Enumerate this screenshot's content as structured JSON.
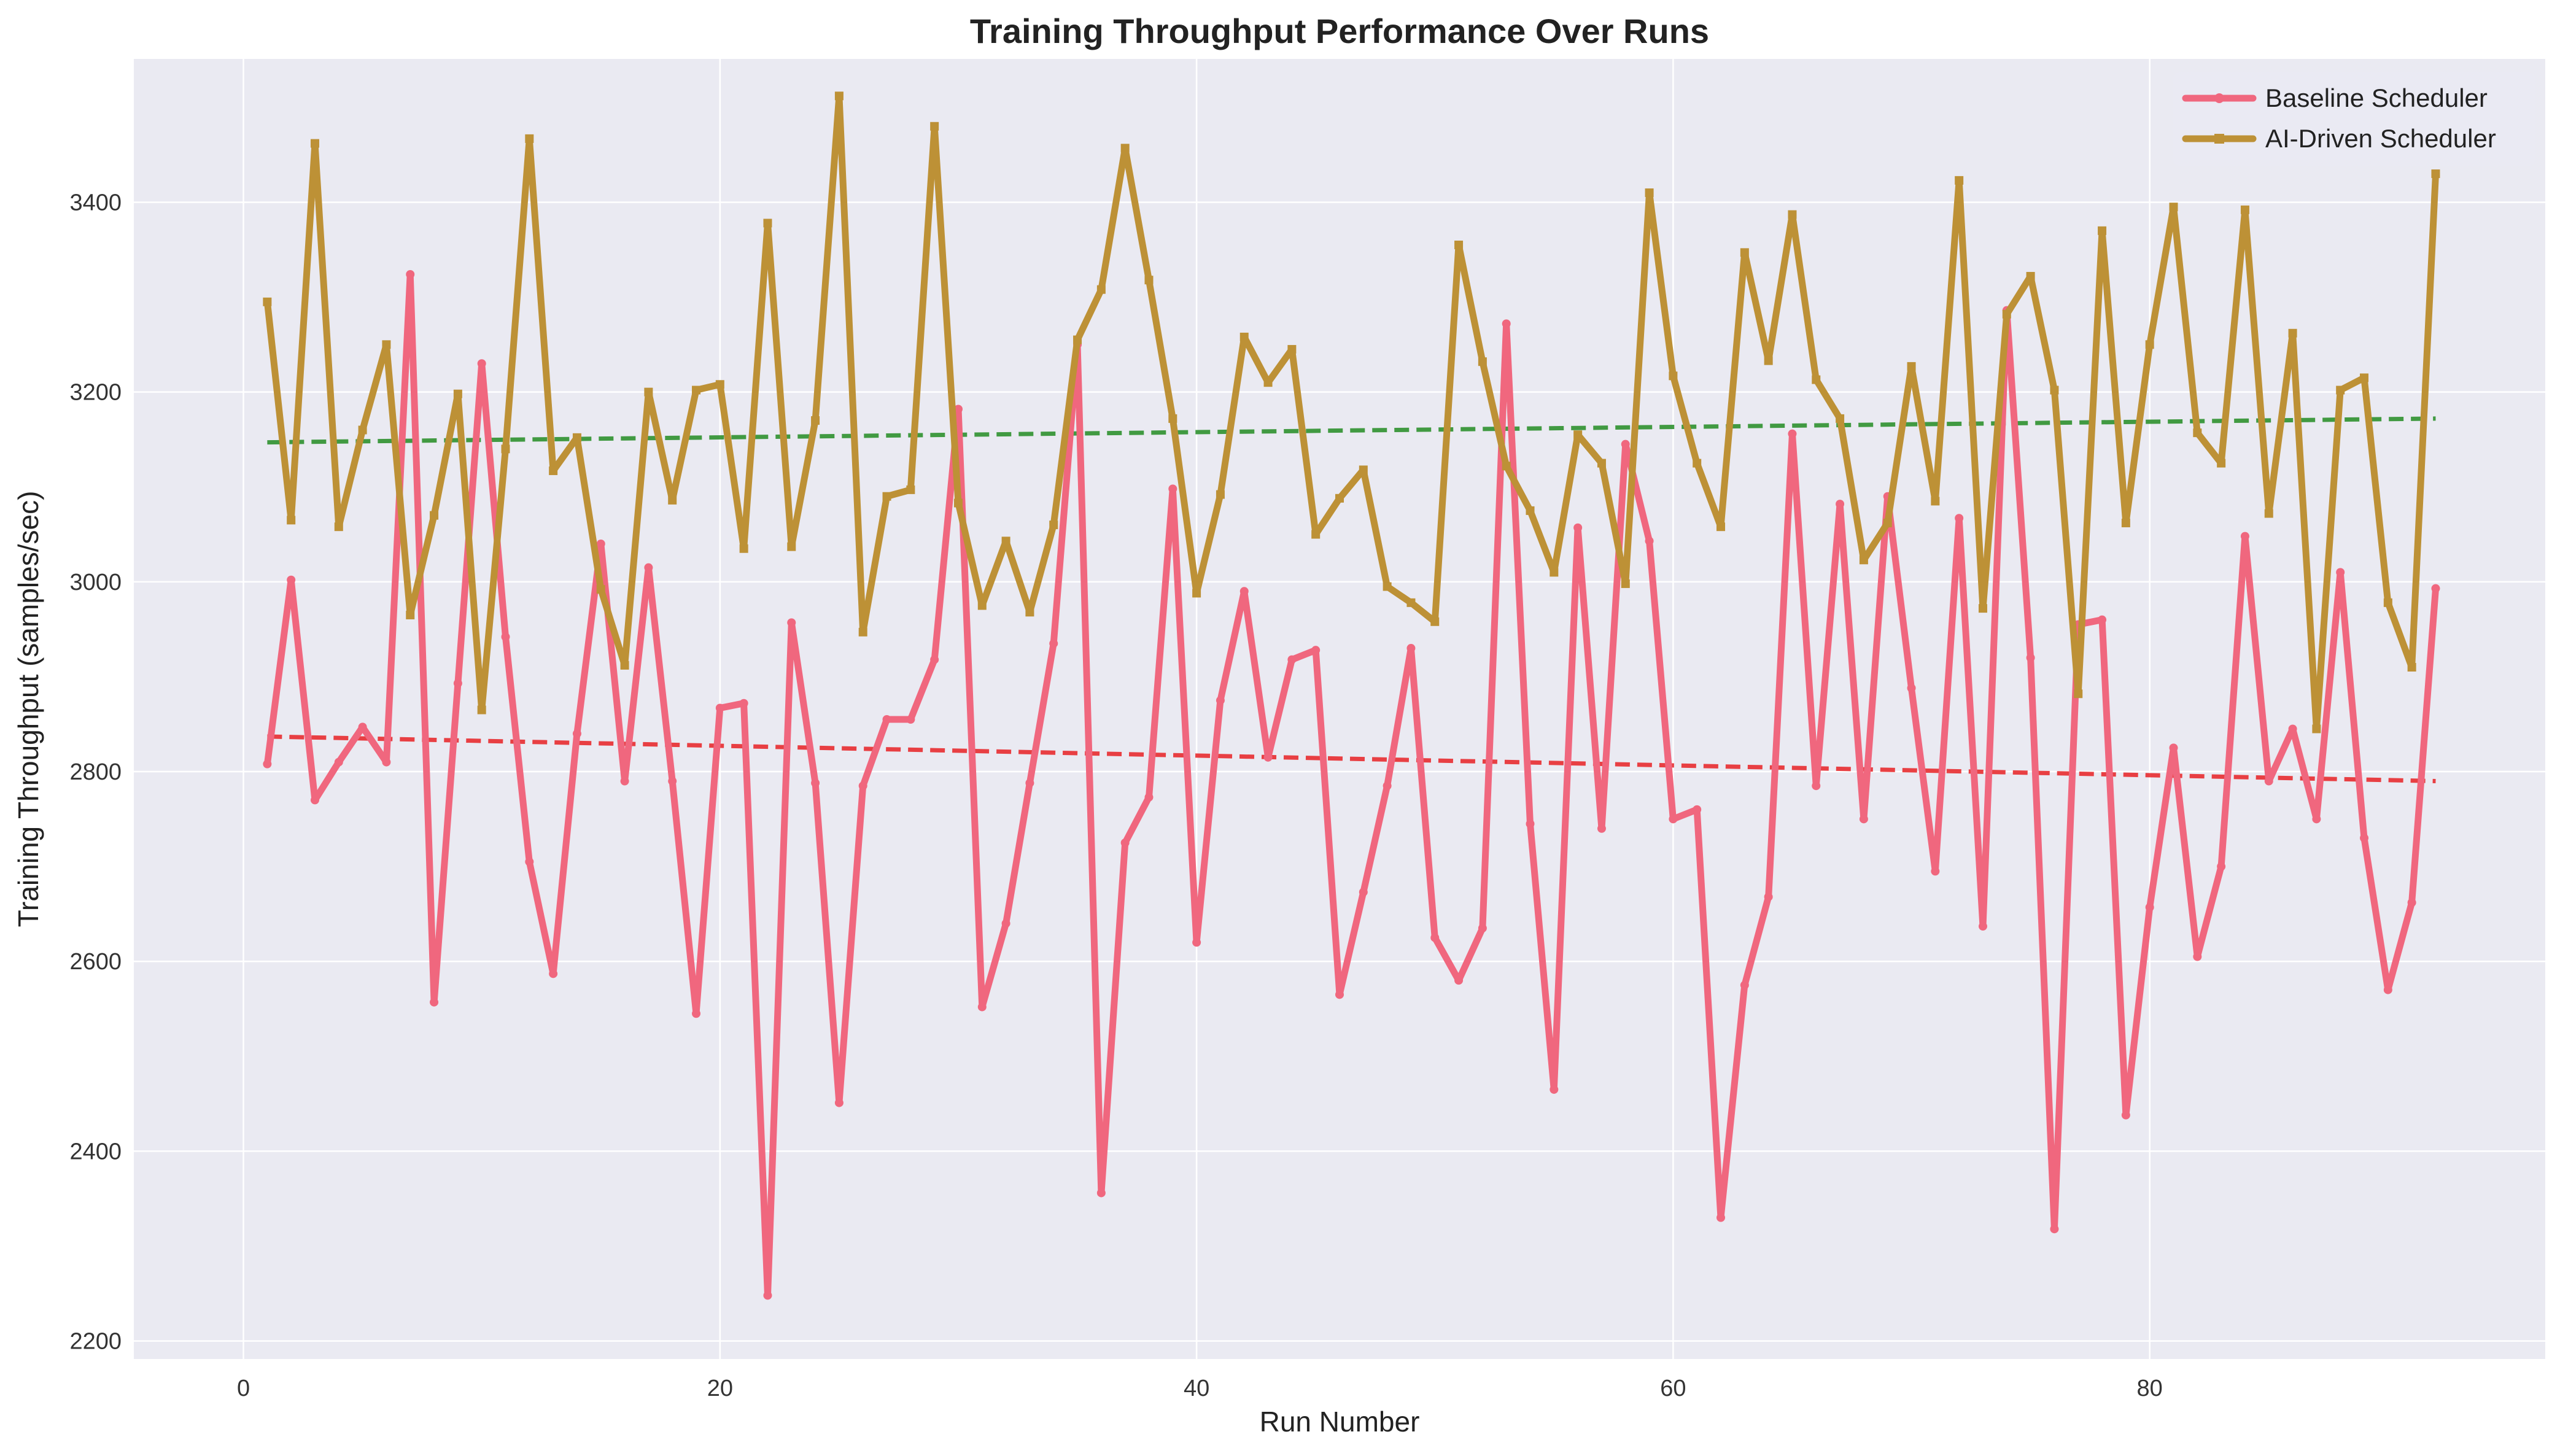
{
  "chart_data": {
    "type": "line",
    "title": "Training Throughput Performance Over Runs",
    "xlabel": "Run Number",
    "ylabel": "Training Throughput (samples/sec)",
    "xlim": [
      -4.6,
      96.6
    ],
    "ylim": [
      2181,
      3551
    ],
    "xticks": [
      0,
      20,
      40,
      60,
      80
    ],
    "yticks": [
      2200,
      2400,
      2600,
      2800,
      3000,
      3200,
      3400
    ],
    "grid": true,
    "legend_position": "top-right",
    "x": [
      1,
      2,
      3,
      4,
      5,
      6,
      7,
      8,
      9,
      10,
      11,
      12,
      13,
      14,
      15,
      16,
      17,
      18,
      19,
      20,
      21,
      22,
      23,
      24,
      25,
      26,
      27,
      28,
      29,
      30,
      31,
      32,
      33,
      34,
      35,
      36,
      37,
      38,
      39,
      40,
      41,
      42,
      43,
      44,
      45,
      46,
      47,
      48,
      49,
      50,
      51,
      52,
      53,
      54,
      55,
      56,
      57,
      58,
      59,
      60,
      61,
      62,
      63,
      64,
      65,
      66,
      67,
      68,
      69,
      70,
      71,
      72,
      73,
      74,
      75,
      76,
      77,
      78,
      79,
      80,
      81,
      82,
      83,
      84,
      85,
      86,
      87,
      88,
      89,
      90,
      91,
      92
    ],
    "series": [
      {
        "name": "Baseline Scheduler",
        "color": "#f0677e",
        "values": [
          2808,
          3002,
          2770,
          2810,
          2847,
          2810,
          3324,
          2557,
          2893,
          3230,
          2942,
          2705,
          2587,
          2840,
          3040,
          2790,
          3015,
          2790,
          2545,
          2867,
          2872,
          2248,
          2957,
          2788,
          2451,
          2785,
          2855,
          2855,
          2918,
          3182,
          2552,
          2640,
          2788,
          2935,
          3250,
          2356,
          2725,
          2773,
          3098,
          2620,
          2875,
          2990,
          2815,
          2918,
          2928,
          2565,
          2673,
          2785,
          2930,
          2625,
          2580,
          2635,
          3272,
          2745,
          2465,
          3057,
          2740,
          3145,
          3043,
          2750,
          2760,
          2330,
          2575,
          2668,
          3156,
          2785,
          3082,
          2750,
          3090,
          2888,
          2695,
          3067,
          2637,
          3286,
          2920,
          2318,
          2955,
          2960,
          2438,
          2657,
          2825,
          2605,
          2700,
          3048,
          2790,
          2845,
          2750,
          3010,
          2730,
          2570,
          2662,
          2993
        ],
        "trend": [
          2837,
          2790
        ]
      },
      {
        "name": "AI-Driven Scheduler",
        "color": "#bd9136",
        "values": [
          3295,
          3065,
          3462,
          3058,
          3160,
          3250,
          2965,
          3070,
          3198,
          2865,
          3140,
          3467,
          3117,
          3152,
          2992,
          2912,
          3200,
          3086,
          3202,
          3208,
          3035,
          3378,
          3037,
          3170,
          3512,
          2947,
          3090,
          3097,
          3480,
          3083,
          2975,
          3043,
          2968,
          3060,
          3255,
          3308,
          3457,
          3318,
          3172,
          2988,
          3092,
          3258,
          3210,
          3245,
          3050,
          3088,
          3118,
          2995,
          2978,
          2958,
          3355,
          3232,
          3122,
          3075,
          3010,
          3155,
          3125,
          2998,
          3410,
          3217,
          3125,
          3058,
          3347,
          3233,
          3387,
          3213,
          3172,
          3023,
          3062,
          3227,
          3085,
          3423,
          2972,
          3282,
          3322,
          3202,
          2882,
          3370,
          3062,
          3250,
          3395,
          3157,
          3125,
          3392,
          3072,
          3262,
          2845,
          3202,
          3215,
          2978,
          2910,
          3430
        ],
        "trend": [
          3147,
          3172
        ]
      }
    ]
  }
}
